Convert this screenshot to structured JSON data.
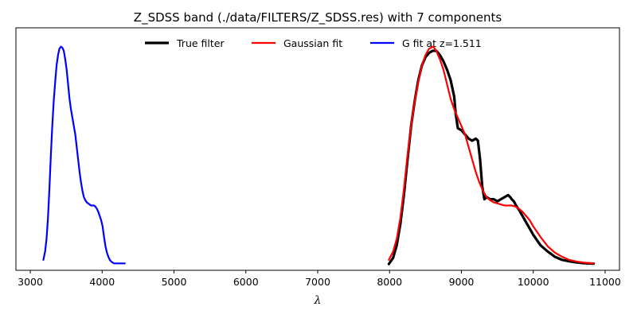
{
  "chart_data": {
    "type": "line",
    "title": "Z_SDSS band (./data/FILTERS/Z_SDSS.res) with 7 components",
    "xlabel": "λ",
    "ylabel": "",
    "xlim": [
      2800,
      11200
    ],
    "ylim": [
      -0.03,
      1.13
    ],
    "x_ticks": [
      3000,
      4000,
      5000,
      6000,
      7000,
      8000,
      9000,
      10000,
      11000
    ],
    "y_ticks_visible": false,
    "grid": false,
    "legend_position": "top-center",
    "series": [
      {
        "name": "True filter",
        "color": "#000000",
        "x": [
          7990,
          8050,
          8100,
          8150,
          8200,
          8250,
          8300,
          8350,
          8400,
          8450,
          8500,
          8550,
          8600,
          8650,
          8700,
          8750,
          8800,
          8850,
          8900,
          8920,
          8950,
          9000,
          9050,
          9100,
          9150,
          9200,
          9230,
          9260,
          9290,
          9320,
          9350,
          9400,
          9450,
          9500,
          9550,
          9600,
          9650,
          9680,
          9700,
          9730,
          9760,
          9800,
          9850,
          9900,
          9950,
          10000,
          10100,
          10200,
          10300,
          10400,
          10500,
          10600,
          10700,
          10840
        ],
        "y": [
          0.0,
          0.03,
          0.09,
          0.19,
          0.33,
          0.5,
          0.66,
          0.78,
          0.88,
          0.95,
          0.99,
          1.01,
          1.02,
          1.02,
          1.0,
          0.97,
          0.93,
          0.88,
          0.8,
          0.72,
          0.65,
          0.64,
          0.62,
          0.6,
          0.59,
          0.6,
          0.59,
          0.5,
          0.37,
          0.31,
          0.32,
          0.31,
          0.31,
          0.3,
          0.31,
          0.32,
          0.33,
          0.32,
          0.31,
          0.3,
          0.28,
          0.26,
          0.23,
          0.2,
          0.17,
          0.14,
          0.09,
          0.06,
          0.035,
          0.02,
          0.013,
          0.008,
          0.004,
          0.002
        ]
      },
      {
        "name": "Gaussian fit",
        "color": "#ff0000",
        "x": [
          7990,
          8050,
          8100,
          8150,
          8200,
          8250,
          8300,
          8350,
          8400,
          8450,
          8500,
          8550,
          8600,
          8620,
          8650,
          8700,
          8750,
          8800,
          8850,
          8900,
          8950,
          9000,
          9050,
          9100,
          9150,
          9200,
          9250,
          9300,
          9350,
          9400,
          9450,
          9500,
          9550,
          9600,
          9650,
          9700,
          9750,
          9800,
          9850,
          9900,
          9950,
          10000,
          10100,
          10200,
          10300,
          10400,
          10500,
          10600,
          10700,
          10840
        ],
        "y": [
          0.02,
          0.06,
          0.12,
          0.22,
          0.36,
          0.52,
          0.66,
          0.78,
          0.87,
          0.95,
          1.0,
          1.03,
          1.04,
          1.035,
          1.02,
          0.98,
          0.93,
          0.86,
          0.79,
          0.74,
          0.7,
          0.66,
          0.62,
          0.56,
          0.5,
          0.44,
          0.39,
          0.35,
          0.32,
          0.305,
          0.295,
          0.29,
          0.285,
          0.28,
          0.28,
          0.28,
          0.275,
          0.265,
          0.25,
          0.23,
          0.21,
          0.18,
          0.13,
          0.085,
          0.055,
          0.035,
          0.02,
          0.012,
          0.007,
          0.003
        ]
      },
      {
        "name": "G fit at z=1.511",
        "color": "#0000ff",
        "x": [
          3182,
          3206,
          3226,
          3246,
          3266,
          3286,
          3306,
          3326,
          3346,
          3366,
          3386,
          3406,
          3426,
          3446,
          3466,
          3486,
          3506,
          3526,
          3546,
          3566,
          3586,
          3606,
          3626,
          3646,
          3666,
          3686,
          3706,
          3726,
          3746,
          3766,
          3786,
          3806,
          3826,
          3846,
          3866,
          3886,
          3906,
          3926,
          3946,
          3966,
          3986,
          4006,
          4026,
          4046,
          4066,
          4086,
          4106,
          4126,
          4146,
          4166,
          4186,
          4206,
          4246,
          4286,
          4316
        ],
        "y": [
          0.02,
          0.06,
          0.12,
          0.22,
          0.36,
          0.52,
          0.66,
          0.78,
          0.87,
          0.95,
          1.0,
          1.03,
          1.04,
          1.035,
          1.02,
          0.98,
          0.93,
          0.86,
          0.79,
          0.74,
          0.7,
          0.66,
          0.62,
          0.56,
          0.5,
          0.44,
          0.39,
          0.35,
          0.32,
          0.305,
          0.295,
          0.29,
          0.285,
          0.28,
          0.28,
          0.28,
          0.275,
          0.265,
          0.25,
          0.23,
          0.21,
          0.18,
          0.13,
          0.085,
          0.055,
          0.035,
          0.02,
          0.012,
          0.007,
          0.003,
          0.003,
          0.003,
          0.003,
          0.003,
          0.003
        ]
      }
    ]
  }
}
